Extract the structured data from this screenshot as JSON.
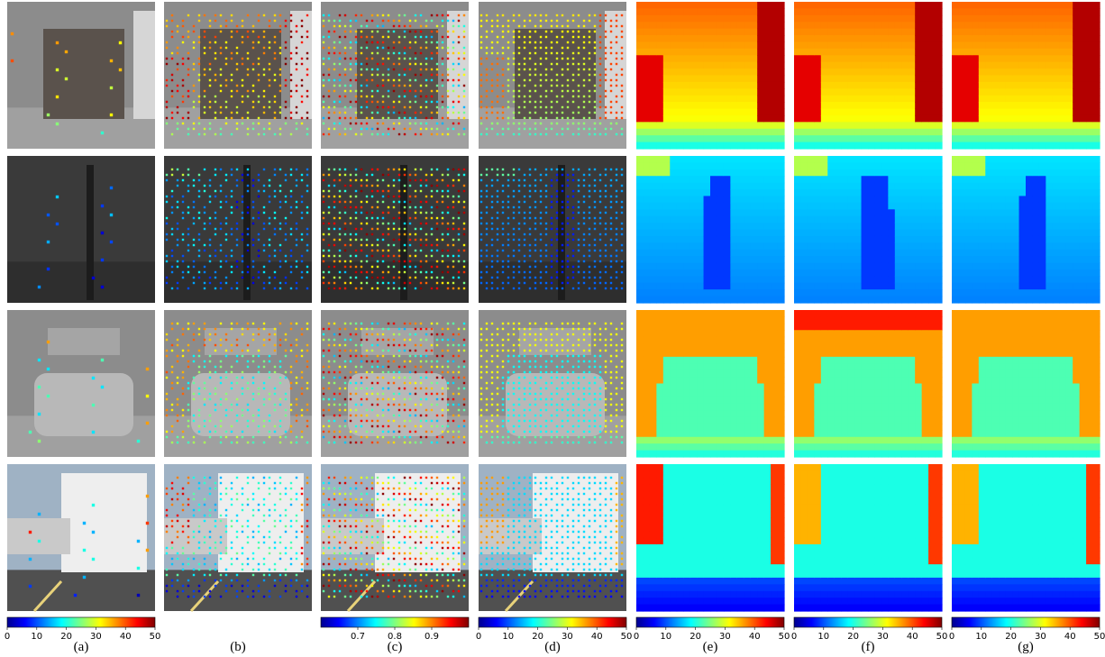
{
  "figure": {
    "columns": [
      {
        "id": "a",
        "label": "(a)",
        "colorbar": {
          "ticks": [
            "0",
            "10",
            "20",
            "30",
            "40",
            "50"
          ]
        }
      },
      {
        "id": "b",
        "label": "(b)",
        "colorbar": null
      },
      {
        "id": "c",
        "label": "(c)",
        "colorbar": {
          "ticks": [
            "0.7",
            "0.8",
            "0.9"
          ]
        }
      },
      {
        "id": "d",
        "label": "(d)",
        "colorbar": {
          "ticks": [
            "0",
            "10",
            "20",
            "30",
            "40",
            "50"
          ]
        }
      },
      {
        "id": "e",
        "label": "(e)",
        "colorbar": {
          "ticks": [
            "0",
            "10",
            "20",
            "30",
            "40",
            "50"
          ]
        }
      },
      {
        "id": "f",
        "label": "(f)",
        "colorbar": {
          "ticks": [
            "0",
            "10",
            "20",
            "30",
            "40",
            "50"
          ]
        }
      },
      {
        "id": "g",
        "label": "(g)",
        "colorbar": {
          "ticks": [
            "0",
            "10",
            "20",
            "30",
            "40",
            "50"
          ]
        }
      }
    ],
    "rows": [
      {
        "id": "truck-close"
      },
      {
        "id": "pole-night"
      },
      {
        "id": "car-rear"
      },
      {
        "id": "truck-trailer"
      }
    ],
    "colormap": "jet",
    "colors": {
      "scene_gray": "#8a8a8a",
      "road": "#6e6e6e",
      "depth_near": "#0a2dc8",
      "depth_far": "#b40000"
    }
  }
}
